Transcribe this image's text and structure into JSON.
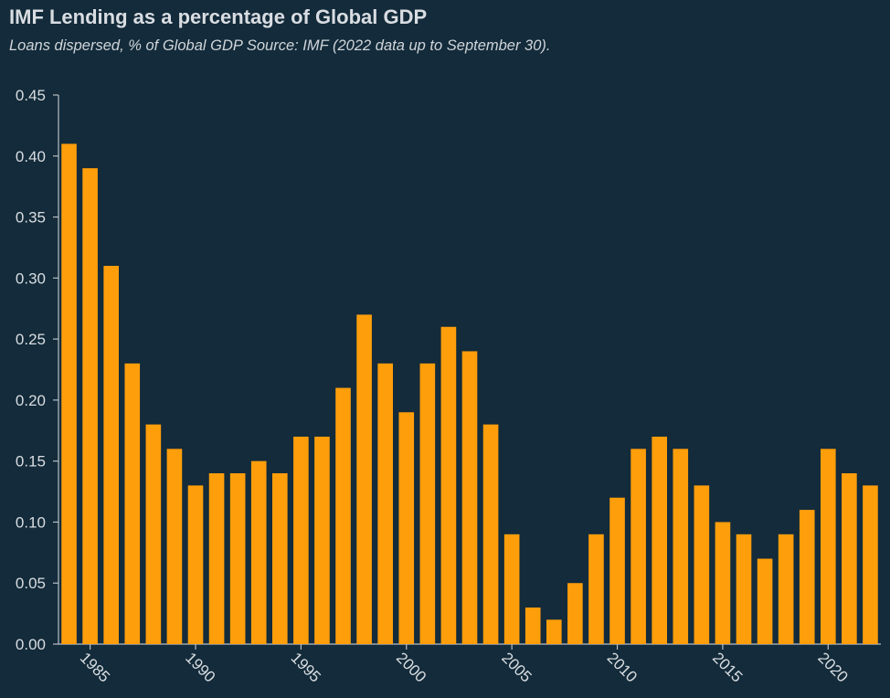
{
  "chart_data": {
    "type": "bar",
    "title": "IMF Lending as a percentage of Global GDP",
    "subtitle": "Loans dispersed, % of Global GDP Source: IMF (2022 data up to September 30).",
    "xlabel": "",
    "ylabel": "",
    "ylim": [
      0,
      0.45
    ],
    "yticks": [
      "0.00",
      "0.05",
      "0.10",
      "0.15",
      "0.20",
      "0.25",
      "0.30",
      "0.35",
      "0.40",
      "0.45"
    ],
    "xticks": [
      "1985",
      "1990",
      "1995",
      "2000",
      "2005",
      "2010",
      "2015",
      "2020"
    ],
    "categories": [
      1984,
      1985,
      1986,
      1987,
      1988,
      1989,
      1990,
      1991,
      1992,
      1993,
      1994,
      1995,
      1996,
      1997,
      1998,
      1999,
      2000,
      2001,
      2002,
      2003,
      2004,
      2005,
      2006,
      2007,
      2008,
      2009,
      2010,
      2011,
      2012,
      2013,
      2014,
      2015,
      2016,
      2017,
      2018,
      2019,
      2020,
      2021,
      2022
    ],
    "values": [
      0.41,
      0.39,
      0.31,
      0.23,
      0.18,
      0.16,
      0.13,
      0.14,
      0.14,
      0.15,
      0.14,
      0.17,
      0.17,
      0.21,
      0.27,
      0.23,
      0.19,
      0.23,
      0.26,
      0.24,
      0.18,
      0.09,
      0.03,
      0.02,
      0.05,
      0.09,
      0.12,
      0.16,
      0.17,
      0.16,
      0.13,
      0.1,
      0.09,
      0.07,
      0.09,
      0.11,
      0.16,
      0.14,
      0.13
    ],
    "bar_color": "#ff9e0b",
    "background_color": "#132b3a",
    "axis_color": "#b8bec5",
    "grid": false,
    "legend": "none"
  }
}
